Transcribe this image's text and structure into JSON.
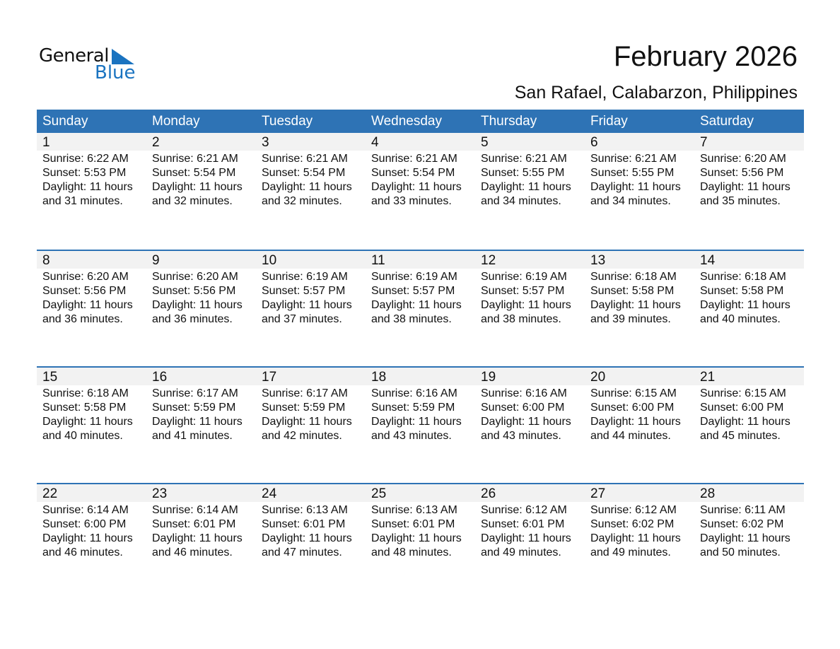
{
  "logo": {
    "text_general": "General",
    "text_blue": "Blue",
    "accent": "#1a73c0"
  },
  "title": "February 2026",
  "subtitle": "San Rafael, Calabarzon, Philippines",
  "colors": {
    "header": "#2e73b5",
    "date_row": "#f2f2f2"
  },
  "days_of_week": [
    "Sunday",
    "Monday",
    "Tuesday",
    "Wednesday",
    "Thursday",
    "Friday",
    "Saturday"
  ],
  "weeks": [
    {
      "days": [
        {
          "date": "1",
          "sunrise": "Sunrise: 6:22 AM",
          "sunset": "Sunset: 5:53 PM",
          "daylight": "Daylight: 11 hours",
          "minutes": "and 31 minutes."
        },
        {
          "date": "2",
          "sunrise": "Sunrise: 6:21 AM",
          "sunset": "Sunset: 5:54 PM",
          "daylight": "Daylight: 11 hours",
          "minutes": "and 32 minutes."
        },
        {
          "date": "3",
          "sunrise": "Sunrise: 6:21 AM",
          "sunset": "Sunset: 5:54 PM",
          "daylight": "Daylight: 11 hours",
          "minutes": "and 32 minutes."
        },
        {
          "date": "4",
          "sunrise": "Sunrise: 6:21 AM",
          "sunset": "Sunset: 5:54 PM",
          "daylight": "Daylight: 11 hours",
          "minutes": "and 33 minutes."
        },
        {
          "date": "5",
          "sunrise": "Sunrise: 6:21 AM",
          "sunset": "Sunset: 5:55 PM",
          "daylight": "Daylight: 11 hours",
          "minutes": "and 34 minutes."
        },
        {
          "date": "6",
          "sunrise": "Sunrise: 6:21 AM",
          "sunset": "Sunset: 5:55 PM",
          "daylight": "Daylight: 11 hours",
          "minutes": "and 34 minutes."
        },
        {
          "date": "7",
          "sunrise": "Sunrise: 6:20 AM",
          "sunset": "Sunset: 5:56 PM",
          "daylight": "Daylight: 11 hours",
          "minutes": "and 35 minutes."
        }
      ]
    },
    {
      "days": [
        {
          "date": "8",
          "sunrise": "Sunrise: 6:20 AM",
          "sunset": "Sunset: 5:56 PM",
          "daylight": "Daylight: 11 hours",
          "minutes": "and 36 minutes."
        },
        {
          "date": "9",
          "sunrise": "Sunrise: 6:20 AM",
          "sunset": "Sunset: 5:56 PM",
          "daylight": "Daylight: 11 hours",
          "minutes": "and 36 minutes."
        },
        {
          "date": "10",
          "sunrise": "Sunrise: 6:19 AM",
          "sunset": "Sunset: 5:57 PM",
          "daylight": "Daylight: 11 hours",
          "minutes": "and 37 minutes."
        },
        {
          "date": "11",
          "sunrise": "Sunrise: 6:19 AM",
          "sunset": "Sunset: 5:57 PM",
          "daylight": "Daylight: 11 hours",
          "minutes": "and 38 minutes."
        },
        {
          "date": "12",
          "sunrise": "Sunrise: 6:19 AM",
          "sunset": "Sunset: 5:57 PM",
          "daylight": "Daylight: 11 hours",
          "minutes": "and 38 minutes."
        },
        {
          "date": "13",
          "sunrise": "Sunrise: 6:18 AM",
          "sunset": "Sunset: 5:58 PM",
          "daylight": "Daylight: 11 hours",
          "minutes": "and 39 minutes."
        },
        {
          "date": "14",
          "sunrise": "Sunrise: 6:18 AM",
          "sunset": "Sunset: 5:58 PM",
          "daylight": "Daylight: 11 hours",
          "minutes": "and 40 minutes."
        }
      ]
    },
    {
      "days": [
        {
          "date": "15",
          "sunrise": "Sunrise: 6:18 AM",
          "sunset": "Sunset: 5:58 PM",
          "daylight": "Daylight: 11 hours",
          "minutes": "and 40 minutes."
        },
        {
          "date": "16",
          "sunrise": "Sunrise: 6:17 AM",
          "sunset": "Sunset: 5:59 PM",
          "daylight": "Daylight: 11 hours",
          "minutes": "and 41 minutes."
        },
        {
          "date": "17",
          "sunrise": "Sunrise: 6:17 AM",
          "sunset": "Sunset: 5:59 PM",
          "daylight": "Daylight: 11 hours",
          "minutes": "and 42 minutes."
        },
        {
          "date": "18",
          "sunrise": "Sunrise: 6:16 AM",
          "sunset": "Sunset: 5:59 PM",
          "daylight": "Daylight: 11 hours",
          "minutes": "and 43 minutes."
        },
        {
          "date": "19",
          "sunrise": "Sunrise: 6:16 AM",
          "sunset": "Sunset: 6:00 PM",
          "daylight": "Daylight: 11 hours",
          "minutes": "and 43 minutes."
        },
        {
          "date": "20",
          "sunrise": "Sunrise: 6:15 AM",
          "sunset": "Sunset: 6:00 PM",
          "daylight": "Daylight: 11 hours",
          "minutes": "and 44 minutes."
        },
        {
          "date": "21",
          "sunrise": "Sunrise: 6:15 AM",
          "sunset": "Sunset: 6:00 PM",
          "daylight": "Daylight: 11 hours",
          "minutes": "and 45 minutes."
        }
      ]
    },
    {
      "days": [
        {
          "date": "22",
          "sunrise": "Sunrise: 6:14 AM",
          "sunset": "Sunset: 6:00 PM",
          "daylight": "Daylight: 11 hours",
          "minutes": "and 46 minutes."
        },
        {
          "date": "23",
          "sunrise": "Sunrise: 6:14 AM",
          "sunset": "Sunset: 6:01 PM",
          "daylight": "Daylight: 11 hours",
          "minutes": "and 46 minutes."
        },
        {
          "date": "24",
          "sunrise": "Sunrise: 6:13 AM",
          "sunset": "Sunset: 6:01 PM",
          "daylight": "Daylight: 11 hours",
          "minutes": "and 47 minutes."
        },
        {
          "date": "25",
          "sunrise": "Sunrise: 6:13 AM",
          "sunset": "Sunset: 6:01 PM",
          "daylight": "Daylight: 11 hours",
          "minutes": "and 48 minutes."
        },
        {
          "date": "26",
          "sunrise": "Sunrise: 6:12 AM",
          "sunset": "Sunset: 6:01 PM",
          "daylight": "Daylight: 11 hours",
          "minutes": "and 49 minutes."
        },
        {
          "date": "27",
          "sunrise": "Sunrise: 6:12 AM",
          "sunset": "Sunset: 6:02 PM",
          "daylight": "Daylight: 11 hours",
          "minutes": "and 49 minutes."
        },
        {
          "date": "28",
          "sunrise": "Sunrise: 6:11 AM",
          "sunset": "Sunset: 6:02 PM",
          "daylight": "Daylight: 11 hours",
          "minutes": "and 50 minutes."
        }
      ]
    }
  ]
}
